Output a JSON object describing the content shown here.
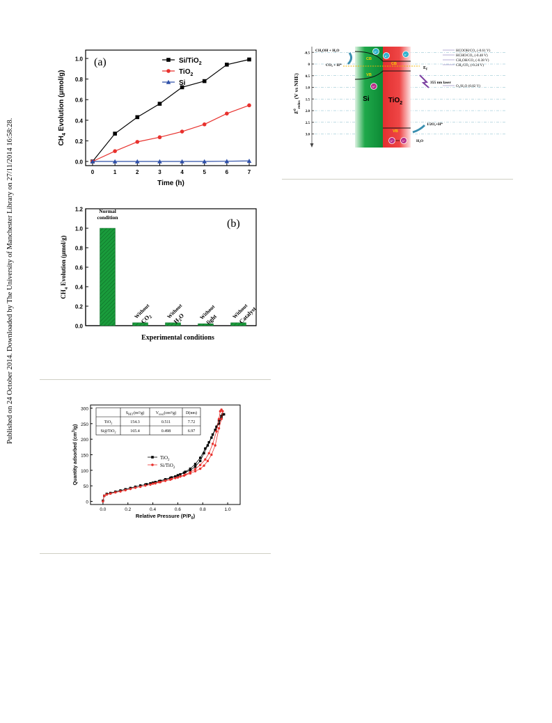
{
  "sidebar_text": "Published on 24 October 2014. Downloaded by The University of Manchester Library on 27/11/2014 16:58:28.",
  "chart_data": [
    {
      "type": "line",
      "panel_label": "(a)",
      "xlabel": "Time (h)",
      "ylabel_main": "CH",
      "ylabel_sub": "4",
      "ylabel_rest": " Evolution (μmol/g)",
      "xlim": [
        0,
        7
      ],
      "ylim": [
        0,
        1.0
      ],
      "xticks": [
        "0",
        "1",
        "2",
        "3",
        "4",
        "5",
        "6",
        "7"
      ],
      "yticks": [
        "0.0",
        "0.2",
        "0.4",
        "0.6",
        "0.8",
        "1.0"
      ],
      "x": [
        0,
        1,
        2,
        3,
        4,
        5,
        6,
        7
      ],
      "series": [
        {
          "name": "Si/TiO2",
          "legend_main": "Si/TiO",
          "legend_sub": "2",
          "color": "#000000",
          "marker": "square",
          "values": [
            0,
            0.27,
            0.43,
            0.56,
            0.72,
            0.78,
            0.94,
            0.99
          ]
        },
        {
          "name": "TiO2",
          "legend_main": "TiO",
          "legend_sub": "2",
          "color": "#e8312d",
          "marker": "circle",
          "values": [
            0,
            0.1,
            0.19,
            0.235,
            0.29,
            0.36,
            0.465,
            0.545
          ]
        },
        {
          "name": "Si",
          "legend_main": "Si",
          "legend_sub": "",
          "color": "#2e4fa8",
          "marker": "triangle",
          "values": [
            0,
            0,
            0,
            0,
            0,
            0,
            0.002,
            0.005
          ]
        }
      ]
    },
    {
      "type": "bar",
      "panel_label": "(b)",
      "xlabel": "Experimental conditions",
      "ylabel_main": "CH",
      "ylabel_sub": "4",
      "ylabel_rest": " Evolution (μmol/g)",
      "ylim": [
        0,
        1.2
      ],
      "yticks": [
        "0.0",
        "0.2",
        "0.4",
        "0.6",
        "0.8",
        "1.0",
        "1.2"
      ],
      "bar_color": "#1a9c3c",
      "categories": [
        {
          "line1": "Normal",
          "line2": "condition",
          "line2_sub": ""
        },
        {
          "line1": "Without",
          "line2": "CO",
          "line2_sub": "2"
        },
        {
          "line1": "Without",
          "line2": "H",
          "line2_sub": "2",
          "line2_tail": "O"
        },
        {
          "line1": "Without",
          "line2": "light",
          "line2_sub": ""
        },
        {
          "line1": "Without",
          "line2": "Catalyst",
          "line2_sub": ""
        }
      ],
      "values": [
        1.0,
        0.03,
        0.03,
        0.02,
        0.03
      ]
    },
    {
      "type": "scatter",
      "panel_label": "",
      "xlabel_main": "Relative Pressure (P/P",
      "xlabel_sub": "0",
      "xlabel_tail": ")",
      "ylabel_main": "Quantity adsorbed (cm",
      "ylabel_sup": "3",
      "ylabel_tail": "/g)",
      "xlim": [
        -0.1,
        1.1
      ],
      "ylim": [
        -10,
        310
      ],
      "xticks": [
        "0.0",
        "0.2",
        "0.4",
        "0.6",
        "0.8",
        "1.0"
      ],
      "yticks": [
        "0",
        "50",
        "100",
        "150",
        "200",
        "250",
        "300"
      ],
      "series": [
        {
          "name": "TiO2",
          "legend_main": "TiO",
          "legend_sub": "2",
          "color": "#000000",
          "marker": "square",
          "points": [
            [
              0.0,
              2
            ],
            [
              0.01,
              18
            ],
            [
              0.03,
              24
            ],
            [
              0.06,
              27
            ],
            [
              0.1,
              31
            ],
            [
              0.14,
              35
            ],
            [
              0.18,
              39
            ],
            [
              0.22,
              43
            ],
            [
              0.26,
              47
            ],
            [
              0.3,
              51
            ],
            [
              0.34,
              54
            ],
            [
              0.38,
              58
            ],
            [
              0.42,
              62
            ],
            [
              0.46,
              66
            ],
            [
              0.5,
              70
            ],
            [
              0.54,
              75
            ],
            [
              0.58,
              80
            ],
            [
              0.62,
              87
            ],
            [
              0.66,
              95
            ],
            [
              0.7,
              105
            ],
            [
              0.74,
              120
            ],
            [
              0.78,
              140
            ],
            [
              0.82,
              170
            ],
            [
              0.85,
              190
            ],
            [
              0.88,
              215
            ],
            [
              0.91,
              240
            ],
            [
              0.93,
              260
            ],
            [
              0.95,
              275
            ],
            [
              0.96,
              280
            ],
            [
              0.97,
              280
            ],
            [
              0.95,
              270
            ],
            [
              0.93,
              250
            ],
            [
              0.9,
              230
            ],
            [
              0.87,
              205
            ],
            [
              0.84,
              180
            ],
            [
              0.81,
              155
            ],
            [
              0.78,
              130
            ],
            [
              0.74,
              112
            ],
            [
              0.7,
              100
            ],
            [
              0.65,
              92
            ],
            [
              0.6,
              84
            ],
            [
              0.55,
              77
            ],
            [
              0.5,
              71
            ],
            [
              0.45,
              65
            ],
            [
              0.4,
              60
            ],
            [
              0.35,
              55
            ]
          ]
        },
        {
          "name": "Si/TiO2",
          "legend_main": "Si/TiO",
          "legend_sub": "2",
          "color": "#e8312d",
          "marker": "circle",
          "points": [
            [
              0.0,
              0
            ],
            [
              0.01,
              18
            ],
            [
              0.03,
              22
            ],
            [
              0.06,
              25
            ],
            [
              0.1,
              29
            ],
            [
              0.14,
              32
            ],
            [
              0.18,
              36
            ],
            [
              0.22,
              40
            ],
            [
              0.26,
              44
            ],
            [
              0.3,
              47
            ],
            [
              0.34,
              51
            ],
            [
              0.38,
              54
            ],
            [
              0.42,
              58
            ],
            [
              0.46,
              62
            ],
            [
              0.5,
              66
            ],
            [
              0.54,
              70
            ],
            [
              0.58,
              75
            ],
            [
              0.62,
              80
            ],
            [
              0.66,
              86
            ],
            [
              0.7,
              94
            ],
            [
              0.74,
              104
            ],
            [
              0.78,
              117
            ],
            [
              0.82,
              135
            ],
            [
              0.85,
              155
            ],
            [
              0.88,
              185
            ],
            [
              0.91,
              225
            ],
            [
              0.93,
              265
            ],
            [
              0.94,
              290
            ],
            [
              0.95,
              295
            ],
            [
              0.96,
              290
            ],
            [
              0.95,
              265
            ],
            [
              0.93,
              235
            ],
            [
              0.9,
              180
            ],
            [
              0.87,
              150
            ],
            [
              0.84,
              130
            ],
            [
              0.81,
              115
            ],
            [
              0.78,
              105
            ],
            [
              0.74,
              97
            ],
            [
              0.7,
              90
            ],
            [
              0.65,
              83
            ],
            [
              0.6,
              77
            ],
            [
              0.55,
              72
            ],
            [
              0.5,
              67
            ],
            [
              0.45,
              62
            ],
            [
              0.4,
              57
            ]
          ]
        }
      ],
      "table": {
        "headers": [
          {
            "main": "",
            "sub": "",
            "tail": ""
          },
          {
            "main": "S",
            "sub": "BET",
            "tail": "(m²/g)"
          },
          {
            "main": "V",
            "sub": "total",
            "tail": "(cm³/g)"
          },
          {
            "main": "D(nm)",
            "sub": "",
            "tail": ""
          }
        ],
        "rows": [
          {
            "label_main": "TiO",
            "label_sub": "2",
            "label_tail": "",
            "cells": [
              "154.3",
              "0.511",
              "7.72"
            ]
          },
          {
            "label_main": "Si@TiO",
            "label_sub": "2",
            "label_tail": "",
            "cells": [
              "165.4",
              "0.498",
              "6.97"
            ]
          }
        ]
      }
    }
  ],
  "diagram": {
    "axis_label_main": "E",
    "axis_label_sup": "0",
    "axis_label_sub": "redox",
    "axis_label_tail": " (V vs NHE)",
    "yticks": [
      "-0.5",
      "0",
      "0.5",
      "1.0",
      "1.5",
      "2.0",
      "2.5",
      "3.0"
    ],
    "si_label": "Si",
    "tio2_label_main": "TiO",
    "tio2_label_sub": "2",
    "cb_label": "CB",
    "vb_label": "VB",
    "ef_label_main": "E",
    "ef_label_sub": "F",
    "laser_label": "355 nm laser",
    "electron_label": "e⁻",
    "hole_label": "h⁺",
    "left_annotations": [
      {
        "text": "CH₃OH + H₂O"
      },
      {
        "text": "CO₂ + H⁺"
      }
    ],
    "right_reactions": [
      {
        "text": "HCOOH/CO₂ (-0.61 V)",
        "potential": -0.61
      },
      {
        "text": "HCHO/CO₂ (-0.48 V)",
        "potential": -0.48
      },
      {
        "text": "CH₃OH/CO₂ (-0.38 V)",
        "potential": -0.38
      },
      {
        "text": "CH₄/CO₂ (-0.24 V)",
        "potential": -0.24
      },
      {
        "text": "O₂/H₂O (0.82 V)",
        "potential": 0.82
      }
    ],
    "bottom_annotations": [
      {
        "text": "1/2O₂+H⁺"
      },
      {
        "text": "H₂O"
      }
    ],
    "colors": {
      "si": "#1fa84a",
      "tio2": "#ef4646",
      "arrow": "#3a8fb0"
    }
  }
}
